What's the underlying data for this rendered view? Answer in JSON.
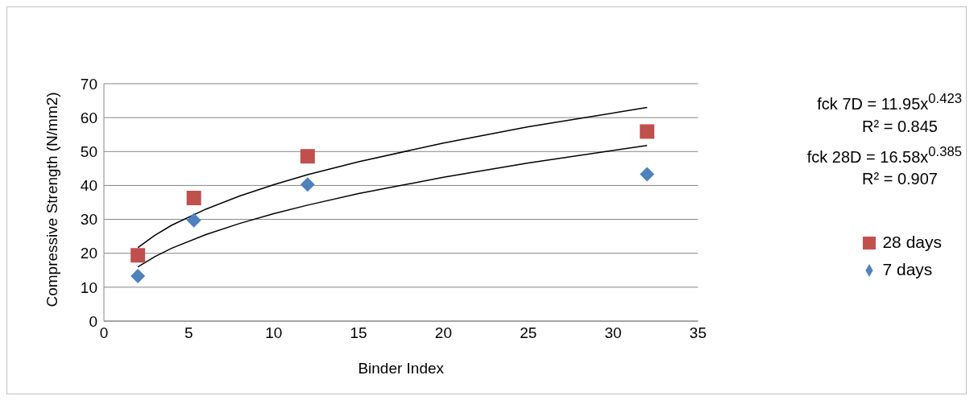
{
  "chart_data": {
    "type": "scatter",
    "xlabel": "Binder Index",
    "ylabel": "Compressive Strength (N/mm2)",
    "xlim": [
      0,
      35
    ],
    "xticks": [
      0,
      5,
      10,
      15,
      20,
      25,
      30,
      35
    ],
    "ylim": [
      0,
      70
    ],
    "yticks": [
      0,
      10,
      20,
      30,
      40,
      50,
      60,
      70
    ],
    "grid": "y",
    "legend": "right",
    "annotations": [
      "fck 7D = 11.95x$^{0.423}$",
      "R² = 0.845",
      "fck 28D = 16.58x$^{0.385}$",
      "R² = 0.907"
    ],
    "series": [
      {
        "name": "7 days",
        "color": "#4f81bd",
        "marker": "diamond",
        "x": [
          2,
          5.3,
          12,
          32
        ],
        "values": [
          13.3,
          29.7,
          40.3,
          43.3
        ]
      },
      {
        "name": "28 days",
        "color": "#c0504d",
        "marker": "square",
        "x": [
          2,
          5.3,
          12,
          32
        ],
        "values": [
          19.4,
          36.3,
          48.6,
          55.9
        ]
      },
      {
        "type": "line",
        "color": "#000000",
        "marker": "none",
        "x": [
          2,
          3,
          4,
          6,
          8,
          10,
          12,
          15,
          20,
          25,
          32
        ],
        "values": [
          16.0,
          19.0,
          21.5,
          25.5,
          28.8,
          31.7,
          34.2,
          37.6,
          42.4,
          46.6,
          51.8
        ]
      },
      {
        "type": "line",
        "color": "#000000",
        "marker": "none",
        "x": [
          2,
          3,
          4,
          6,
          8,
          10,
          12,
          15,
          20,
          25,
          32
        ],
        "values": [
          21.7,
          25.3,
          28.3,
          33.0,
          36.9,
          40.2,
          43.2,
          47.0,
          52.5,
          57.3,
          63.0
        ]
      }
    ]
  }
}
